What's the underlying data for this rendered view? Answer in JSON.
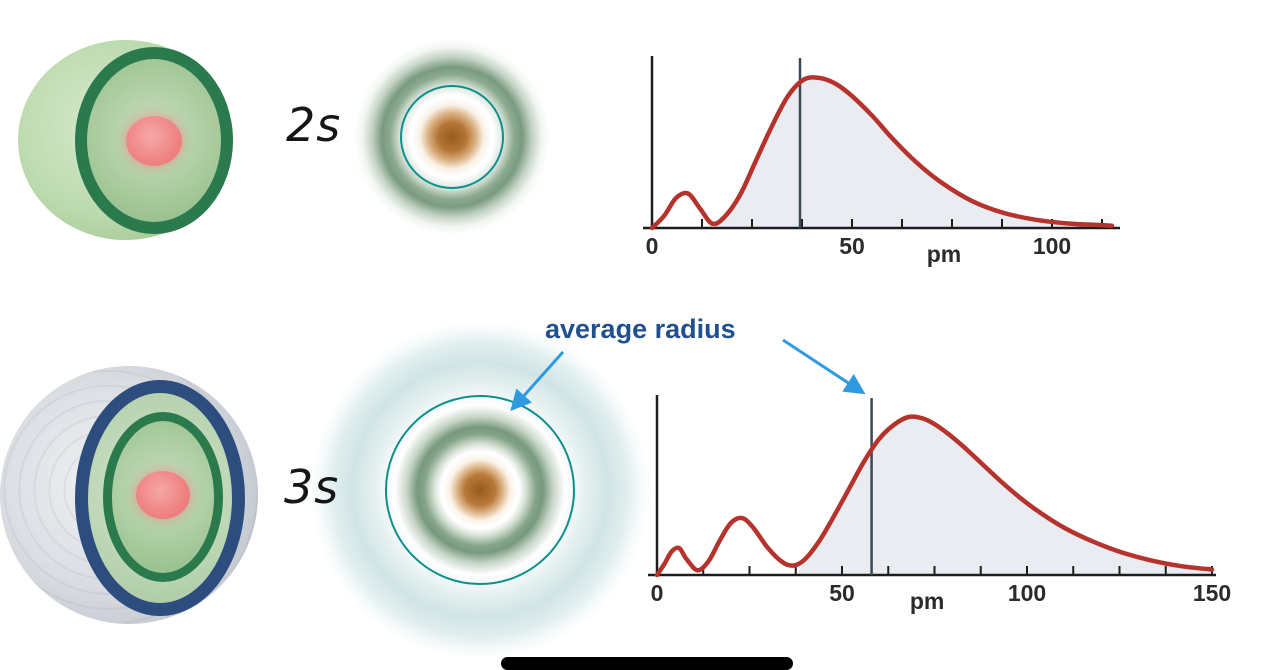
{
  "rows": [
    {
      "label": "2s"
    },
    {
      "label": "3s"
    }
  ],
  "annotation": {
    "text": "average radius",
    "text_color": "#20508e",
    "arrow_color": "#2e9be0"
  },
  "colors": {
    "curve": "#b5332c",
    "fill": "#e9edf2",
    "axis": "#1d1d1d",
    "avg_line": "#3c4a55",
    "teal_circle": "#0e8f8f",
    "bottom_bar": "#000000"
  },
  "chart_data": [
    {
      "type": "line",
      "title": "2s radial probability distribution",
      "xlabel": "pm",
      "ylabel": "",
      "x_ticks_labeled": [
        0,
        50,
        100
      ],
      "minor_tick_step_pm": 12.5,
      "x_max_pm": 116,
      "average_radius_pm": 37,
      "fill_from_pm": 14,
      "pm_label_at": 73,
      "points_pm_vs_probability": [
        [
          0,
          0
        ],
        [
          3,
          0.08
        ],
        [
          6,
          0.2
        ],
        [
          9,
          0.23
        ],
        [
          12,
          0.13
        ],
        [
          15,
          0.03
        ],
        [
          18,
          0.07
        ],
        [
          22,
          0.22
        ],
        [
          26,
          0.45
        ],
        [
          30,
          0.68
        ],
        [
          34,
          0.88
        ],
        [
          38,
          0.99
        ],
        [
          42,
          1.0
        ],
        [
          46,
          0.96
        ],
        [
          50,
          0.88
        ],
        [
          55,
          0.75
        ],
        [
          60,
          0.6
        ],
        [
          66,
          0.44
        ],
        [
          72,
          0.31
        ],
        [
          80,
          0.18
        ],
        [
          88,
          0.1
        ],
        [
          96,
          0.055
        ],
        [
          104,
          0.03
        ],
        [
          112,
          0.02
        ],
        [
          115,
          0.015
        ]
      ]
    },
    {
      "type": "line",
      "title": "3s radial probability distribution",
      "xlabel": "pm",
      "ylabel": "",
      "x_ticks_labeled": [
        0,
        50,
        100,
        150
      ],
      "minor_tick_step_pm": 12.5,
      "x_max_pm": 150,
      "average_radius_pm": 58,
      "fill_from_pm": 38,
      "pm_label_at": 73,
      "points_pm_vs_probability": [
        [
          0,
          0
        ],
        [
          2,
          0.07
        ],
        [
          4,
          0.15
        ],
        [
          6,
          0.17
        ],
        [
          8,
          0.1
        ],
        [
          11,
          0.03
        ],
        [
          14,
          0.09
        ],
        [
          17,
          0.22
        ],
        [
          20,
          0.33
        ],
        [
          23,
          0.36
        ],
        [
          26,
          0.3
        ],
        [
          30,
          0.17
        ],
        [
          34,
          0.08
        ],
        [
          37,
          0.06
        ],
        [
          40,
          0.1
        ],
        [
          44,
          0.22
        ],
        [
          48,
          0.38
        ],
        [
          52,
          0.55
        ],
        [
          56,
          0.72
        ],
        [
          60,
          0.86
        ],
        [
          64,
          0.95
        ],
        [
          68,
          1.0
        ],
        [
          72,
          0.99
        ],
        [
          76,
          0.94
        ],
        [
          82,
          0.83
        ],
        [
          88,
          0.7
        ],
        [
          95,
          0.55
        ],
        [
          102,
          0.42
        ],
        [
          110,
          0.3
        ],
        [
          118,
          0.21
        ],
        [
          126,
          0.14
        ],
        [
          134,
          0.09
        ],
        [
          142,
          0.055
        ],
        [
          150,
          0.035
        ]
      ]
    }
  ]
}
